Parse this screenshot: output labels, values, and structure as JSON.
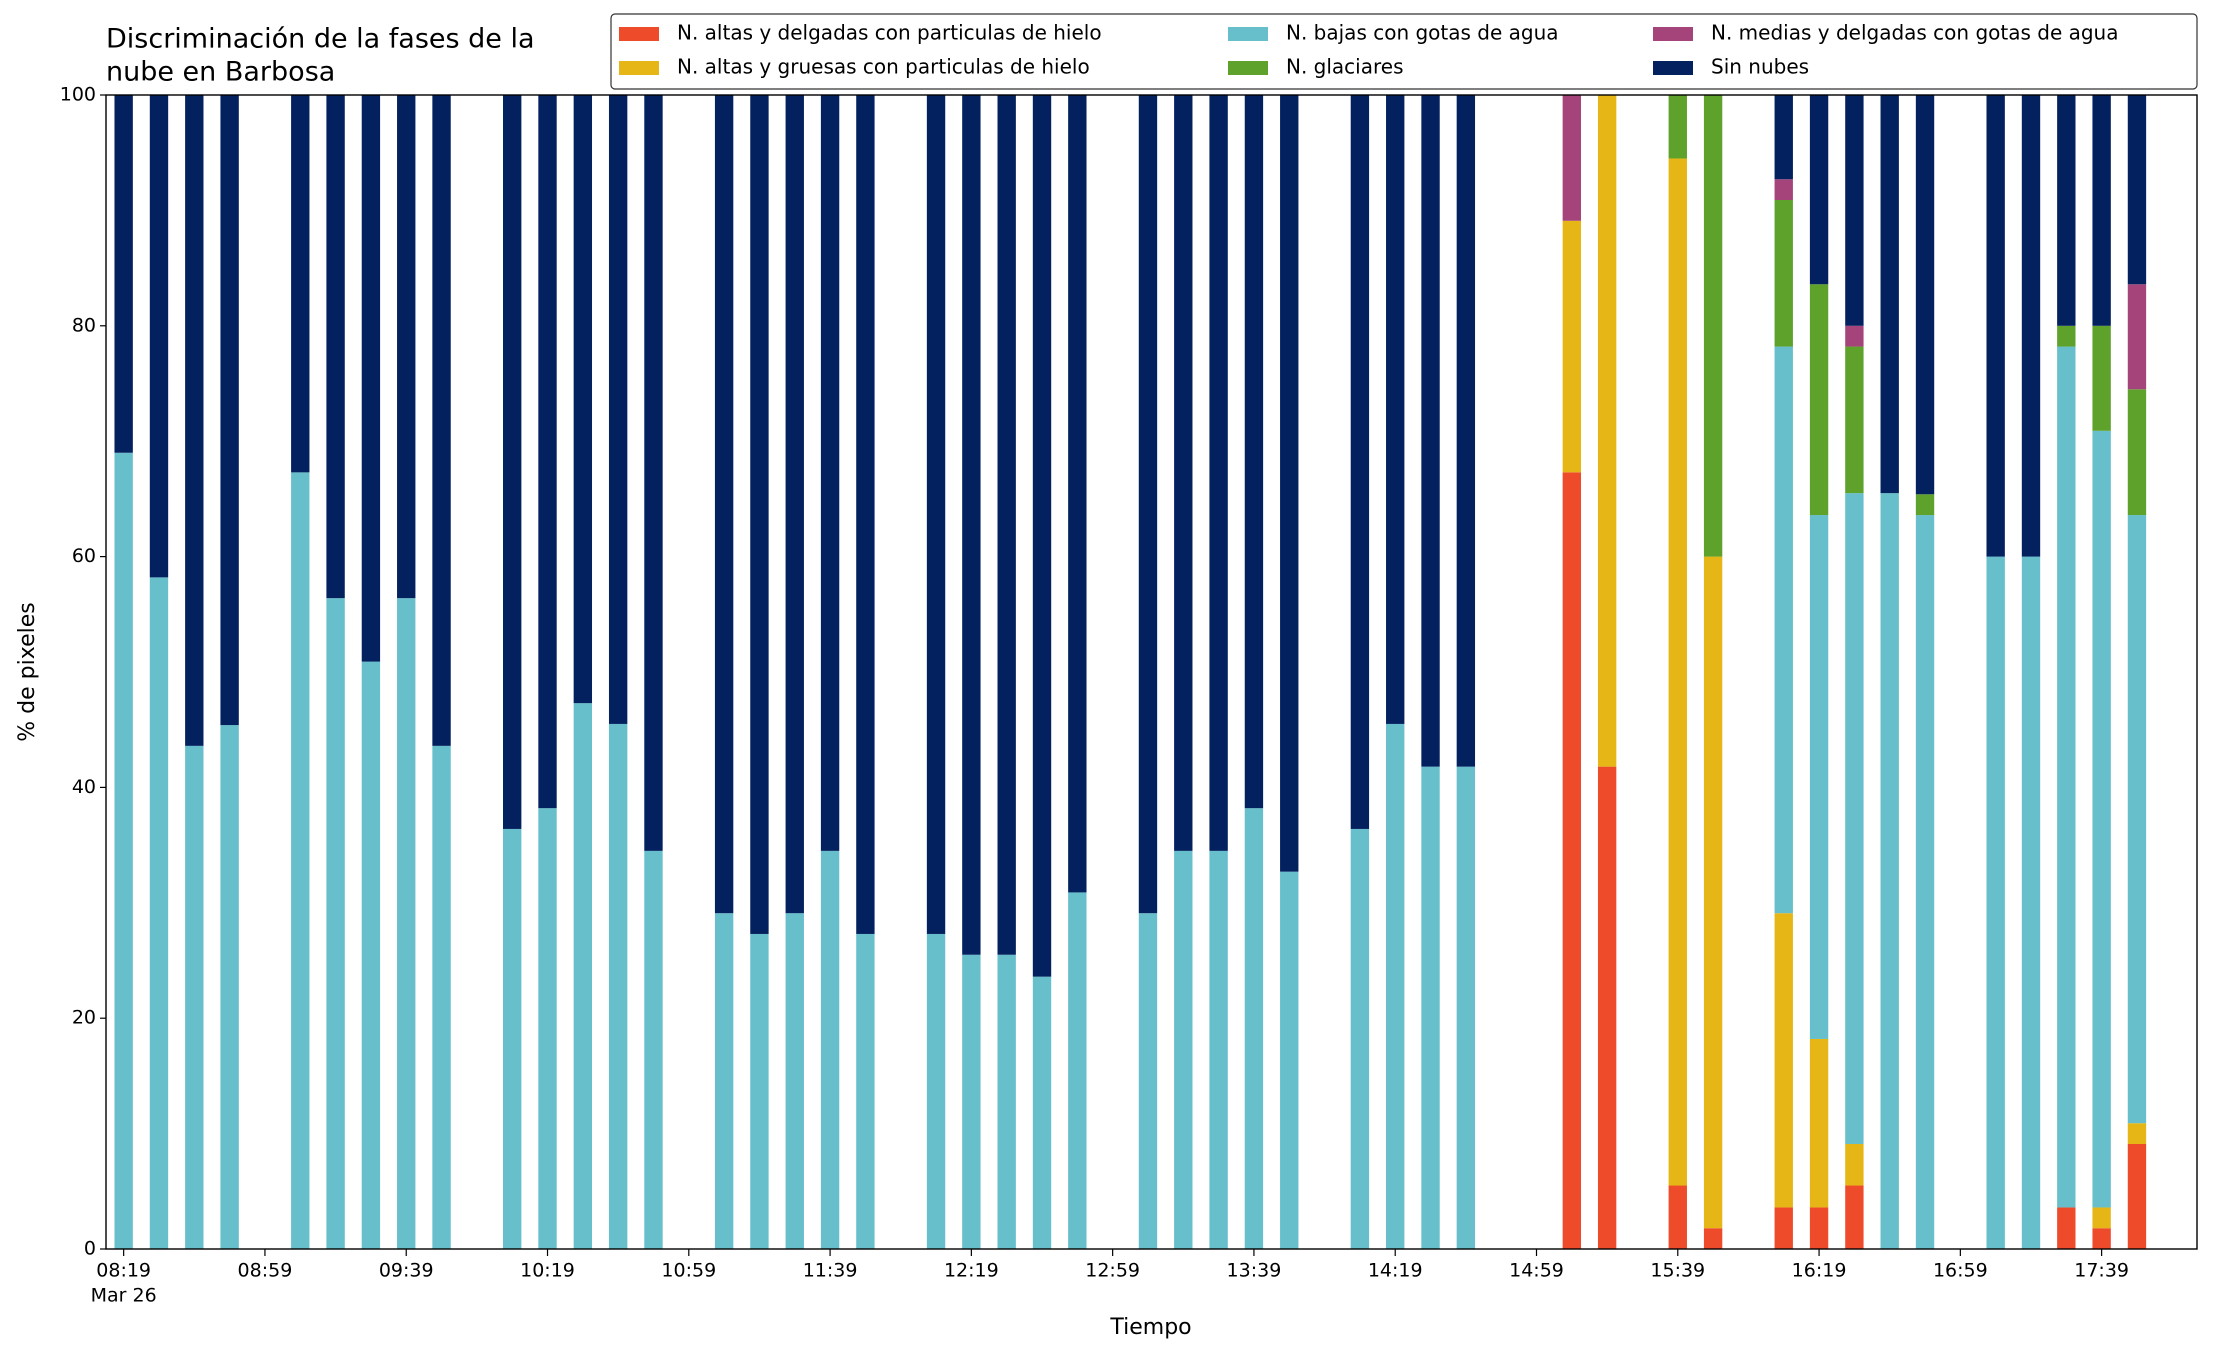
{
  "chart_data": {
    "type": "stacked_bar",
    "title": [
      "Discriminación de la fases de la",
      "nube en Barbosa"
    ],
    "x_label": "Tiempo",
    "y_label": "% de pixeles",
    "x": [
      "08:19",
      "08:29",
      "08:39",
      "08:49",
      "09:09",
      "09:19",
      "09:29",
      "09:39",
      "09:49",
      "10:09",
      "10:19",
      "10:29",
      "10:39",
      "10:49",
      "11:09",
      "11:19",
      "11:29",
      "11:39",
      "11:49",
      "12:09",
      "12:19",
      "12:29",
      "12:39",
      "12:49",
      "13:09",
      "13:19",
      "13:29",
      "13:39",
      "13:49",
      "14:09",
      "14:19",
      "14:29",
      "14:39",
      "15:09",
      "15:19",
      "15:39",
      "15:49",
      "16:09",
      "16:19",
      "16:29",
      "16:39",
      "16:49",
      "17:09",
      "17:19",
      "17:29",
      "17:39",
      "17:49"
    ],
    "xlim": [
      "08:14",
      "18:06"
    ],
    "xticks": [
      "08:19",
      "08:59",
      "09:39",
      "10:19",
      "10:59",
      "11:39",
      "12:19",
      "12:59",
      "13:39",
      "14:19",
      "14:59",
      "15:39",
      "16:19",
      "16:59",
      "17:39"
    ],
    "x_date_label": "Mar 26",
    "ylim": [
      0,
      100
    ],
    "yticks": [
      0,
      20,
      40,
      60,
      80,
      100
    ],
    "legend": "top-right",
    "series": [
      {
        "name": "N. altas y delgadas con particulas de hielo",
        "color": "#ee4b2b",
        "values": [
          0,
          0,
          0,
          0,
          0,
          0,
          0,
          0,
          0,
          0,
          0,
          0,
          0,
          0,
          0,
          0,
          0,
          0,
          0,
          0,
          0,
          0,
          0,
          0,
          0,
          0,
          0,
          0,
          0,
          0,
          0,
          0,
          0,
          67.3,
          41.8,
          5.5,
          1.8,
          3.6,
          3.6,
          5.5,
          0,
          0,
          0,
          0,
          3.6,
          1.8,
          9.1
        ]
      },
      {
        "name": "N. altas y gruesas con particulas de hielo",
        "color": "#e5b616",
        "values": [
          0,
          0,
          0,
          0,
          0,
          0,
          0,
          0,
          0,
          0,
          0,
          0,
          0,
          0,
          0,
          0,
          0,
          0,
          0,
          0,
          0,
          0,
          0,
          0,
          0,
          0,
          0,
          0,
          0,
          0,
          0,
          0,
          0,
          21.8,
          58.2,
          89.0,
          58.2,
          25.5,
          14.6,
          3.6,
          0,
          0,
          0,
          0,
          0,
          1.8,
          1.8
        ]
      },
      {
        "name": "N. bajas con gotas de agua",
        "color": "#66bfca",
        "values": [
          69.0,
          58.2,
          43.6,
          45.4,
          67.3,
          56.4,
          50.9,
          56.4,
          43.6,
          36.4,
          38.2,
          47.3,
          45.5,
          34.5,
          29.1,
          27.3,
          29.1,
          34.5,
          27.3,
          27.3,
          25.5,
          25.5,
          23.6,
          30.9,
          29.1,
          34.5,
          34.5,
          38.2,
          32.7,
          36.4,
          45.5,
          41.8,
          41.8,
          0,
          0,
          0,
          0,
          49.1,
          45.4,
          56.4,
          65.5,
          63.6,
          60,
          60,
          74.6,
          67.3,
          52.7
        ]
      },
      {
        "name": "N. glaciares",
        "color": "#5ea22b",
        "values": [
          0,
          0,
          0,
          0,
          0,
          0,
          0,
          0,
          0,
          0,
          0,
          0,
          0,
          0,
          0,
          0,
          0,
          0,
          0,
          0,
          0,
          0,
          0,
          0,
          0,
          0,
          0,
          0,
          0,
          0,
          0,
          0,
          0,
          0,
          0,
          5.5,
          40,
          12.7,
          20.0,
          12.7,
          0,
          1.8,
          0,
          0,
          1.8,
          9.1,
          10.9
        ]
      },
      {
        "name": "N. medias y delgadas con gotas de agua",
        "color": "#a5447a",
        "values": [
          0,
          0,
          0,
          0,
          0,
          0,
          0,
          0,
          0,
          0,
          0,
          0,
          0,
          0,
          0,
          0,
          0,
          0,
          0,
          0,
          0,
          0,
          0,
          0,
          0,
          0,
          0,
          0,
          0,
          0,
          0,
          0,
          0,
          10.9,
          0,
          0,
          0,
          1.8,
          0,
          1.8,
          0,
          0,
          0,
          0,
          0,
          0,
          9.1
        ]
      },
      {
        "name": "Sin nubes",
        "color": "#03205f",
        "values": [
          31.0,
          41.8,
          56.4,
          54.6,
          32.7,
          43.6,
          49.1,
          43.6,
          56.4,
          63.6,
          61.8,
          52.7,
          54.5,
          65.5,
          70.9,
          72.7,
          70.9,
          65.5,
          72.7,
          72.7,
          74.5,
          74.5,
          76.4,
          69.1,
          70.9,
          65.5,
          65.5,
          61.8,
          67.3,
          63.6,
          54.5,
          58.2,
          58.2,
          0,
          0,
          0,
          0,
          7.3,
          16.4,
          20,
          34.5,
          34.6,
          40,
          40,
          20,
          20,
          16.4
        ]
      }
    ]
  }
}
